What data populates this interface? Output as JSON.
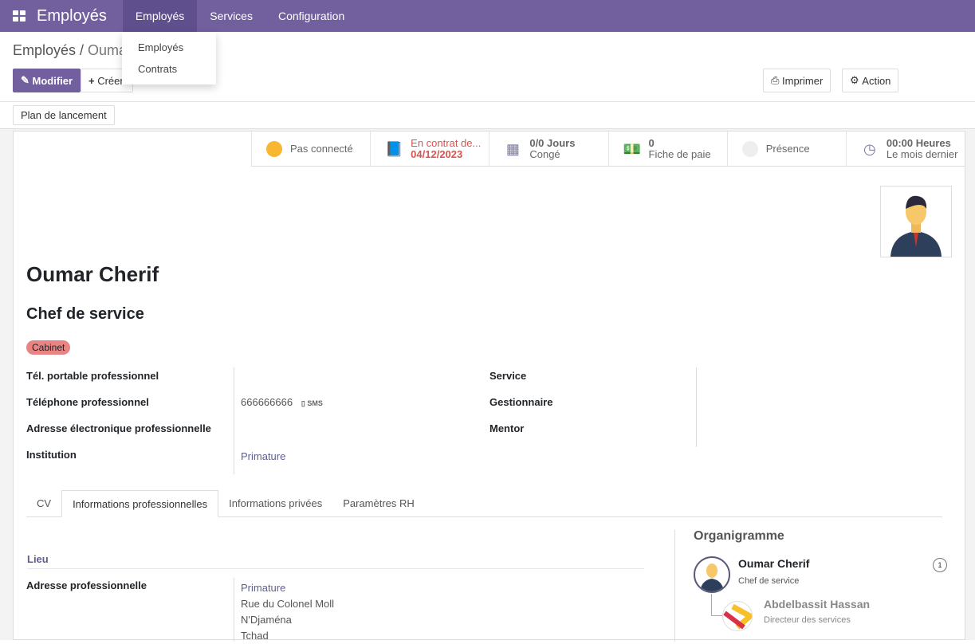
{
  "navbar": {
    "app_title": "Employés",
    "menus": [
      "Employés",
      "Services",
      "Configuration"
    ],
    "active_menu": "Employés"
  },
  "dropdown": {
    "items": [
      "Employés",
      "Contrats"
    ]
  },
  "breadcrumb": {
    "parent": "Employés",
    "current": "Ouma"
  },
  "toolbar": {
    "edit": "Modifier",
    "create": "Créer",
    "print": "Imprimer",
    "action": "Action",
    "launch_plan": "Plan de lancement"
  },
  "stats": [
    {
      "line1": "Pas connecté",
      "icon": "presence-dot",
      "color": "#f7b731"
    },
    {
      "line1": "En contrat de...",
      "line2": "04/12/2023",
      "icon": "book-icon"
    },
    {
      "line1": "0/0 Jours",
      "line2": "Congé",
      "icon": "calendar-icon"
    },
    {
      "line1": "0",
      "line2": "Fiche de paie",
      "icon": "money-icon"
    },
    {
      "line1": "Présence",
      "icon": "presence-dot",
      "color": "#eeeeee"
    },
    {
      "line1": "00:00 Heures",
      "line2": "Le mois dernier",
      "icon": "clock-icon"
    }
  ],
  "employee": {
    "name": "Oumar Cherif",
    "job_title": "Chef de service",
    "tag": "Cabinet"
  },
  "fields_left": [
    {
      "label": "Tél. portable professionnel",
      "value": ""
    },
    {
      "label": "Téléphone professionnel",
      "value": "666666666",
      "extra": "SMS"
    },
    {
      "label": "Adresse électronique professionnelle",
      "value": ""
    },
    {
      "label": "Institution",
      "value": "Primature"
    }
  ],
  "fields_right": [
    {
      "label": "Service"
    },
    {
      "label": "Gestionnaire"
    },
    {
      "label": "Mentor"
    }
  ],
  "tabs": [
    "CV",
    "Informations professionnelles",
    "Informations privées",
    "Paramètres RH"
  ],
  "active_tab": "Informations professionnelles",
  "location": {
    "section": "Lieu",
    "label": "Adresse professionnelle",
    "lines": [
      "Primature",
      "Rue du Colonel Moll",
      "N'Djaména",
      "Tchad"
    ]
  },
  "org": {
    "title": "Organigramme",
    "self": {
      "name": "Oumar Cherif",
      "job": "Chef de service",
      "count": "1"
    },
    "sub": {
      "name": "Abdelbassit Hassan",
      "job": "Directeur des services"
    }
  }
}
